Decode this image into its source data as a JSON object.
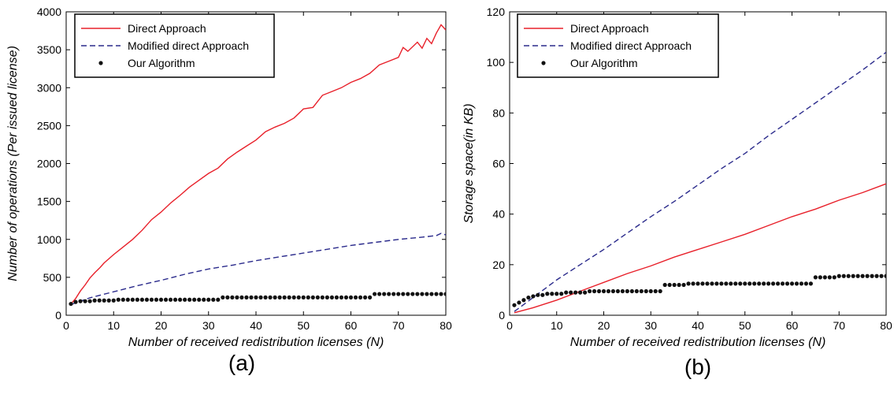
{
  "chart_data": [
    {
      "type": "line",
      "panel_label": "(a)",
      "xlabel": "Number of received redistribution licenses (N)",
      "ylabel": "Number of operations (Per issued license)",
      "xlim": [
        0,
        80
      ],
      "ylim": [
        0,
        4000
      ],
      "xticks": [
        "0",
        "10",
        "20",
        "30",
        "40",
        "50",
        "60",
        "70",
        "80"
      ],
      "yticks": [
        "0",
        "500",
        "1000",
        "1500",
        "2000",
        "2500",
        "3000",
        "3500",
        "4000"
      ],
      "legend_position": "top-left",
      "series": [
        {
          "name": "Direct Approach",
          "style": "solid",
          "color": "#e8202a",
          "points": [
            [
              1,
              150
            ],
            [
              2,
              220
            ],
            [
              3,
              320
            ],
            [
              4,
              400
            ],
            [
              5,
              490
            ],
            [
              6,
              560
            ],
            [
              7,
              620
            ],
            [
              8,
              690
            ],
            [
              10,
              800
            ],
            [
              12,
              900
            ],
            [
              14,
              1000
            ],
            [
              16,
              1120
            ],
            [
              18,
              1260
            ],
            [
              20,
              1360
            ],
            [
              22,
              1480
            ],
            [
              24,
              1580
            ],
            [
              26,
              1690
            ],
            [
              28,
              1780
            ],
            [
              30,
              1870
            ],
            [
              32,
              1940
            ],
            [
              34,
              2060
            ],
            [
              36,
              2150
            ],
            [
              38,
              2230
            ],
            [
              40,
              2310
            ],
            [
              42,
              2420
            ],
            [
              44,
              2480
            ],
            [
              46,
              2530
            ],
            [
              48,
              2600
            ],
            [
              50,
              2720
            ],
            [
              52,
              2740
            ],
            [
              54,
              2900
            ],
            [
              56,
              2950
            ],
            [
              58,
              3000
            ],
            [
              60,
              3070
            ],
            [
              62,
              3120
            ],
            [
              64,
              3190
            ],
            [
              66,
              3300
            ],
            [
              68,
              3350
            ],
            [
              70,
              3400
            ],
            [
              71,
              3530
            ],
            [
              72,
              3480
            ],
            [
              74,
              3600
            ],
            [
              75,
              3520
            ],
            [
              76,
              3650
            ],
            [
              77,
              3580
            ],
            [
              78,
              3720
            ],
            [
              79,
              3830
            ],
            [
              80,
              3760
            ]
          ]
        },
        {
          "name": "Modified direct Approach",
          "style": "dashed",
          "color": "#2b2b8c",
          "points": [
            [
              1,
              140
            ],
            [
              5,
              230
            ],
            [
              10,
              310
            ],
            [
              15,
              390
            ],
            [
              20,
              460
            ],
            [
              25,
              540
            ],
            [
              30,
              610
            ],
            [
              35,
              660
            ],
            [
              40,
              720
            ],
            [
              45,
              770
            ],
            [
              50,
              820
            ],
            [
              55,
              870
            ],
            [
              60,
              920
            ],
            [
              65,
              960
            ],
            [
              70,
              1000
            ],
            [
              75,
              1030
            ],
            [
              78,
              1050
            ],
            [
              79,
              1080
            ],
            [
              80,
              1060
            ]
          ]
        },
        {
          "name": "Our Algorithm",
          "style": "markers",
          "color": "#111111",
          "x_range": [
            1,
            80
          ],
          "steps": [
            [
              1,
              150
            ],
            [
              2,
              175
            ],
            [
              3,
              185
            ],
            [
              6,
              195
            ],
            [
              11,
              205
            ],
            [
              33,
              235
            ],
            [
              65,
              280
            ]
          ]
        }
      ]
    },
    {
      "type": "line",
      "panel_label": "(b)",
      "xlabel": "Number of received redistribution licenses (N)",
      "ylabel": "Storage space(in KB)",
      "xlim": [
        0,
        80
      ],
      "ylim": [
        0,
        120
      ],
      "xticks": [
        "0",
        "10",
        "20",
        "30",
        "40",
        "50",
        "60",
        "70",
        "80"
      ],
      "yticks": [
        "0",
        "20",
        "40",
        "60",
        "80",
        "100",
        "120"
      ],
      "legend_position": "top-left",
      "series": [
        {
          "name": "Direct Approach",
          "style": "solid",
          "color": "#e8202a",
          "points": [
            [
              1,
              1
            ],
            [
              5,
              3
            ],
            [
              10,
              6
            ],
            [
              15,
              9.5
            ],
            [
              20,
              13
            ],
            [
              25,
              16.5
            ],
            [
              30,
              19.5
            ],
            [
              35,
              23
            ],
            [
              40,
              26
            ],
            [
              45,
              29
            ],
            [
              50,
              32
            ],
            [
              55,
              35.5
            ],
            [
              60,
              39
            ],
            [
              65,
              42
            ],
            [
              70,
              45.5
            ],
            [
              75,
              48.5
            ],
            [
              80,
              52
            ]
          ]
        },
        {
          "name": "Modified direct Approach",
          "style": "dashed",
          "color": "#2b2b8c",
          "points": [
            [
              1,
              1.5
            ],
            [
              5,
              7
            ],
            [
              10,
              14
            ],
            [
              15,
              20
            ],
            [
              20,
              26
            ],
            [
              25,
              32.5
            ],
            [
              30,
              39
            ],
            [
              35,
              45
            ],
            [
              40,
              51.5
            ],
            [
              45,
              58
            ],
            [
              50,
              64
            ],
            [
              55,
              71
            ],
            [
              60,
              77.5
            ],
            [
              65,
              84
            ],
            [
              70,
              90.5
            ],
            [
              75,
              97
            ],
            [
              80,
              104
            ]
          ]
        },
        {
          "name": "Our Algorithm",
          "style": "markers",
          "color": "#111111",
          "x_range": [
            1,
            80
          ],
          "steps": [
            [
              1,
              4
            ],
            [
              2,
              5
            ],
            [
              3,
              6
            ],
            [
              4,
              7
            ],
            [
              5,
              7.5
            ],
            [
              6,
              8
            ],
            [
              8,
              8.5
            ],
            [
              12,
              9
            ],
            [
              17,
              9.5
            ],
            [
              33,
              12
            ],
            [
              38,
              12.5
            ],
            [
              65,
              15
            ],
            [
              70,
              15.5
            ]
          ]
        }
      ]
    }
  ]
}
